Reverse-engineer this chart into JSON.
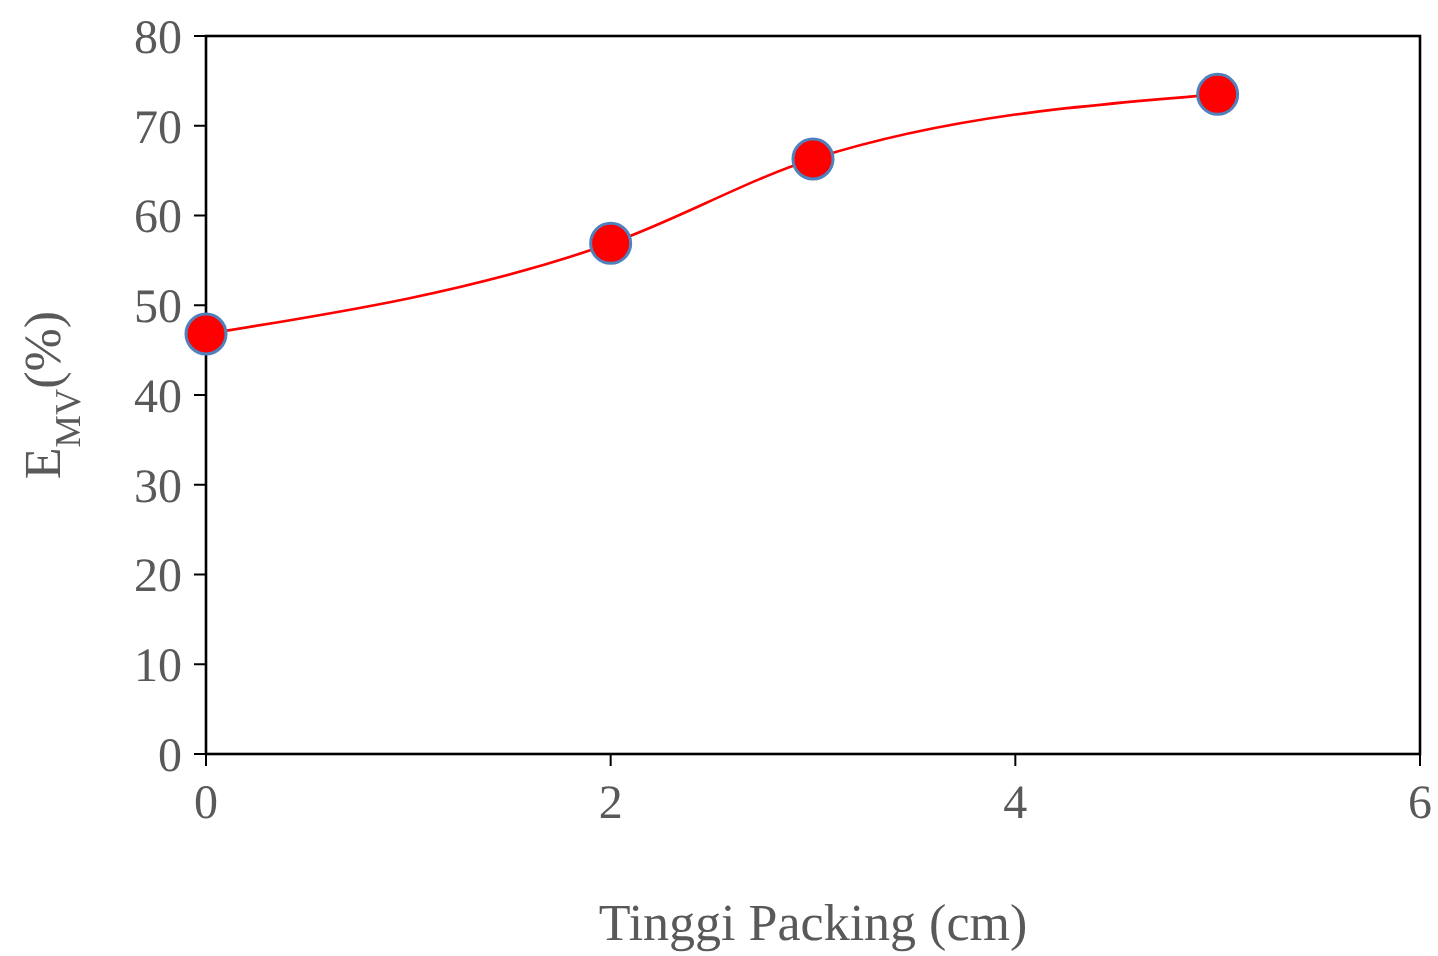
{
  "chart_data": {
    "type": "line",
    "xlabel": "Tinggi Packing (cm)",
    "ylabel": "E$_{MV}$(%)",
    "x": [
      0,
      2,
      3,
      5
    ],
    "series": [
      {
        "color": "#ff0000",
        "values": [
          46.8,
          56.9,
          66.3,
          73.5
        ]
      }
    ],
    "xlim": [
      0,
      6
    ],
    "xticks": [
      0,
      2,
      4,
      6
    ],
    "ylim": [
      0,
      80
    ],
    "yticks": [
      0,
      10,
      20,
      30,
      40,
      50,
      60,
      70,
      80
    ],
    "grid": false,
    "marker": "circle",
    "line_style": "solid"
  }
}
